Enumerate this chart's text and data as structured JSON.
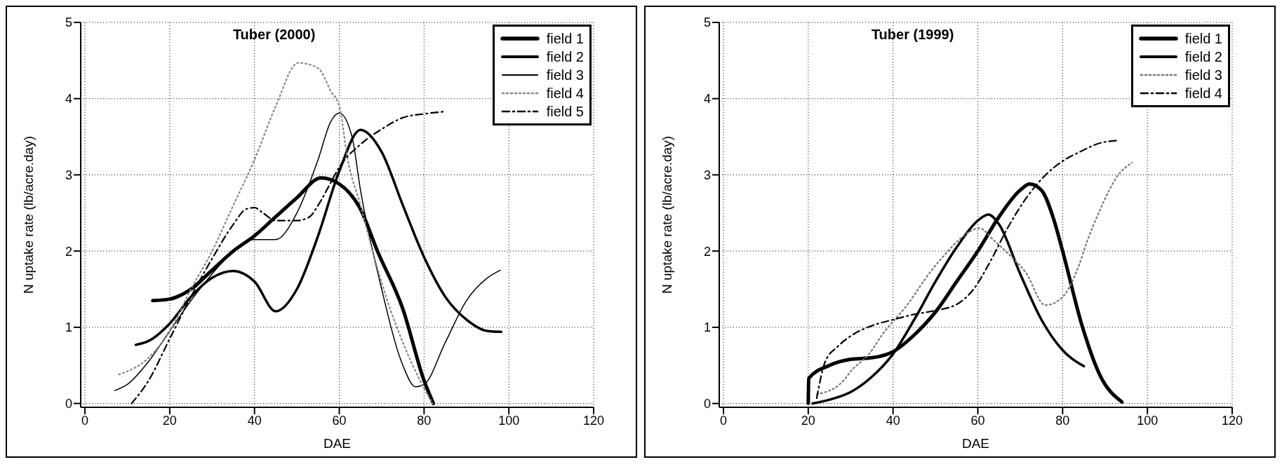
{
  "chart_data": [
    {
      "type": "line",
      "title": "Tuber (2000)",
      "xlabel": "DAE",
      "ylabel": "N uptake rate (lb/acre.day)",
      "xlim": [
        -1,
        120
      ],
      "ylim": [
        -0.05,
        5
      ],
      "xticks": [
        0,
        20,
        40,
        60,
        80,
        100,
        120
      ],
      "yticks": [
        0,
        1,
        2,
        3,
        4,
        5
      ],
      "grid": true,
      "legend": "top right",
      "series": [
        {
          "name": "field 1",
          "color": "#000000",
          "line_style": "solid",
          "x": [
            16,
            20,
            25,
            30,
            35,
            40,
            45,
            50,
            55.7,
            60,
            65,
            69,
            75,
            80,
            82.2
          ],
          "values": [
            1.35,
            1.37,
            1.5,
            1.75,
            2.0,
            2.2,
            2.45,
            2.7,
            2.96,
            2.88,
            2.55,
            2.0,
            1.24,
            0.3,
            0
          ]
        },
        {
          "name": "field 2",
          "color": "#000000",
          "line_style": "solid",
          "x": [
            12,
            15,
            20,
            25,
            30,
            35,
            40,
            45,
            50,
            55,
            60,
            65,
            70,
            75,
            80,
            85,
            90,
            95,
            98.2
          ],
          "values": [
            0.77,
            0.82,
            1.05,
            1.4,
            1.65,
            1.74,
            1.6,
            1.21,
            1.5,
            2.2,
            3.05,
            3.59,
            3.3,
            2.6,
            1.92,
            1.4,
            1.1,
            0.95,
            0.94
          ]
        },
        {
          "name": "field 3",
          "color": "#000000",
          "line_style": "solid",
          "x": [
            7,
            10,
            15,
            20,
            25,
            30,
            35,
            40,
            45,
            50,
            55,
            58,
            60,
            63,
            65,
            70,
            75,
            78,
            80,
            85,
            90,
            95,
            98
          ],
          "values": [
            0.17,
            0.25,
            0.55,
            0.95,
            1.35,
            1.7,
            2.0,
            2.15,
            2.15,
            2.5,
            3.2,
            3.7,
            3.81,
            3.5,
            2.8,
            1.5,
            0.5,
            0.22,
            0.25,
            0.8,
            1.35,
            1.65,
            1.75
          ]
        },
        {
          "name": "field 4",
          "color": "#888888",
          "line_style": "dotted",
          "x": [
            8,
            15,
            20,
            25,
            30,
            35,
            40,
            45,
            50.3,
            55,
            58,
            60,
            62,
            65,
            68,
            72,
            75,
            80,
            82
          ],
          "values": [
            0.38,
            0.6,
            0.95,
            1.5,
            2.0,
            2.6,
            3.2,
            3.9,
            4.47,
            4.4,
            4.1,
            3.9,
            3.2,
            2.6,
            1.97,
            1.24,
            0.8,
            0.2,
            0
          ]
        },
        {
          "name": "field 5",
          "color": "#000000",
          "line_style": "dashed",
          "x": [
            11,
            15,
            20,
            25,
            30,
            35,
            38,
            40,
            42,
            45,
            50,
            53,
            55,
            58,
            60,
            65,
            70,
            75,
            80,
            84.7
          ],
          "values": [
            0,
            0.3,
            0.85,
            1.4,
            1.9,
            2.35,
            2.55,
            2.57,
            2.5,
            2.4,
            2.4,
            2.45,
            2.6,
            2.9,
            3.1,
            3.4,
            3.6,
            3.75,
            3.8,
            3.83
          ]
        }
      ]
    },
    {
      "type": "line",
      "title": "Tuber (1999)",
      "xlabel": "DAE",
      "ylabel": "N uptake rate (lb/acre.day)",
      "xlim": [
        -1,
        120
      ],
      "ylim": [
        -0.05,
        5
      ],
      "xticks": [
        0,
        20,
        40,
        60,
        80,
        100,
        120
      ],
      "yticks": [
        0,
        1,
        2,
        3,
        4,
        5
      ],
      "grid": true,
      "legend": "top right",
      "series": [
        {
          "name": "field 1",
          "color": "#000000",
          "line_style": "solid",
          "x": [
            20,
            20.1,
            25,
            30,
            35,
            40,
            45,
            50,
            55,
            60,
            65,
            70,
            72.2,
            75,
            78,
            80,
            84.7,
            88.9,
            94
          ],
          "values": [
            0,
            0.33,
            0.5,
            0.58,
            0.6,
            0.68,
            0.9,
            1.2,
            1.6,
            2.0,
            2.45,
            2.8,
            2.88,
            2.8,
            2.4,
            2.0,
            1.0,
            0.36,
            0.02
          ]
        },
        {
          "name": "field 2",
          "color": "#000000",
          "line_style": "solid",
          "x": [
            21,
            25,
            30,
            35,
            40,
            45,
            50,
            55,
            60,
            62.5,
            65,
            70,
            75,
            80,
            85
          ],
          "values": [
            0,
            0.05,
            0.15,
            0.35,
            0.65,
            1.1,
            1.6,
            2.05,
            2.4,
            2.48,
            2.35,
            1.7,
            1.1,
            0.7,
            0.49
          ]
        },
        {
          "name": "field 3",
          "color": "#777777",
          "line_style": "dotted",
          "x": [
            22,
            27.8,
            30.3,
            34.5,
            37.4,
            43.3,
            48.7,
            52.5,
            56.2,
            60.4,
            63.8,
            68,
            71.3,
            75.9,
            79.7,
            83.9,
            85.6,
            88.9,
            93,
            96.4
          ],
          "values": [
            0.12,
            0.27,
            0.44,
            0.66,
            0.9,
            1.29,
            1.72,
            1.97,
            2.18,
            2.3,
            2.14,
            1.92,
            1.72,
            1.29,
            1.38,
            1.82,
            2.1,
            2.55,
            2.99,
            3.16
          ]
        },
        {
          "name": "field 4",
          "color": "#000000",
          "line_style": "dashed",
          "x": [
            22,
            24,
            27,
            31,
            35,
            40,
            45,
            50,
            55,
            59,
            63,
            67,
            72,
            76,
            80,
            84,
            89,
            93
          ],
          "values": [
            0.07,
            0.55,
            0.75,
            0.92,
            1.02,
            1.1,
            1.17,
            1.22,
            1.3,
            1.5,
            1.87,
            2.3,
            2.74,
            3.0,
            3.18,
            3.3,
            3.42,
            3.45
          ]
        }
      ]
    }
  ]
}
